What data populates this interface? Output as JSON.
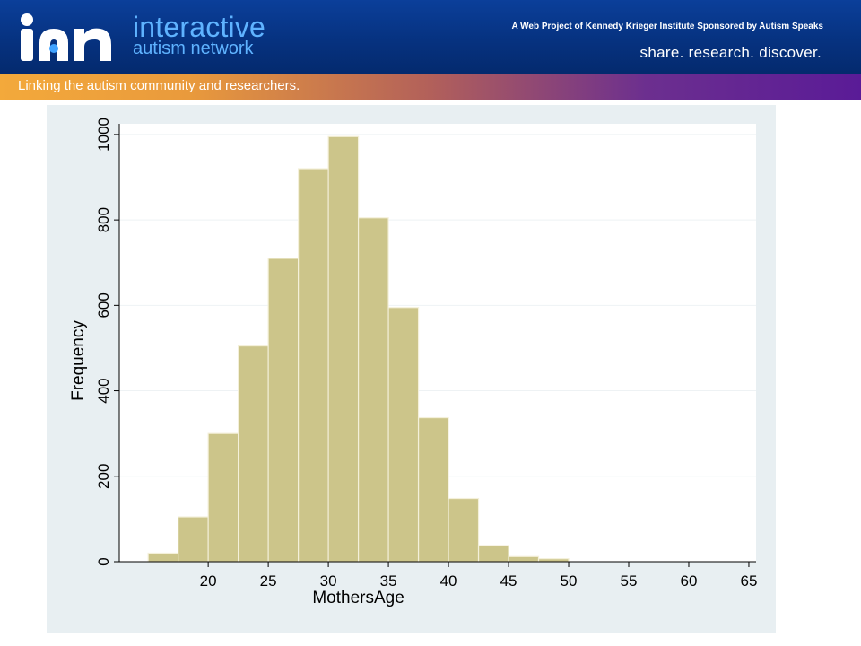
{
  "header": {
    "brand_line1": "interactive",
    "brand_line2": "autism network",
    "sponsor_text": "A Web Project of Kennedy Krieger Institute  Sponsored by Autism Speaks",
    "tagline": "share. research. discover.",
    "strip_text": "Linking the autism community and researchers."
  },
  "chart_data": {
    "type": "bar",
    "xlabel": "MothersAge",
    "ylabel": "Frequency",
    "xlim": [
      12.6,
      65.6
    ],
    "ylim": [
      0,
      1025
    ],
    "xticks": [
      20,
      25,
      30,
      35,
      40,
      45,
      50,
      55,
      60,
      65
    ],
    "yticks": [
      0,
      200,
      400,
      600,
      800,
      1000
    ],
    "grid": true,
    "bin_width": 2.5,
    "bins_start": [
      15,
      17.5,
      20,
      22.5,
      25,
      27.5,
      30,
      32.5,
      35,
      37.5,
      40,
      42.5,
      45,
      47.5
    ],
    "values": [
      20,
      105,
      300,
      505,
      710,
      920,
      995,
      805,
      595,
      337,
      148,
      38,
      12,
      7
    ],
    "bar_color": "#ccc58a",
    "plot_bg": "#ffffff",
    "outer_bg": "#e8eff2"
  }
}
